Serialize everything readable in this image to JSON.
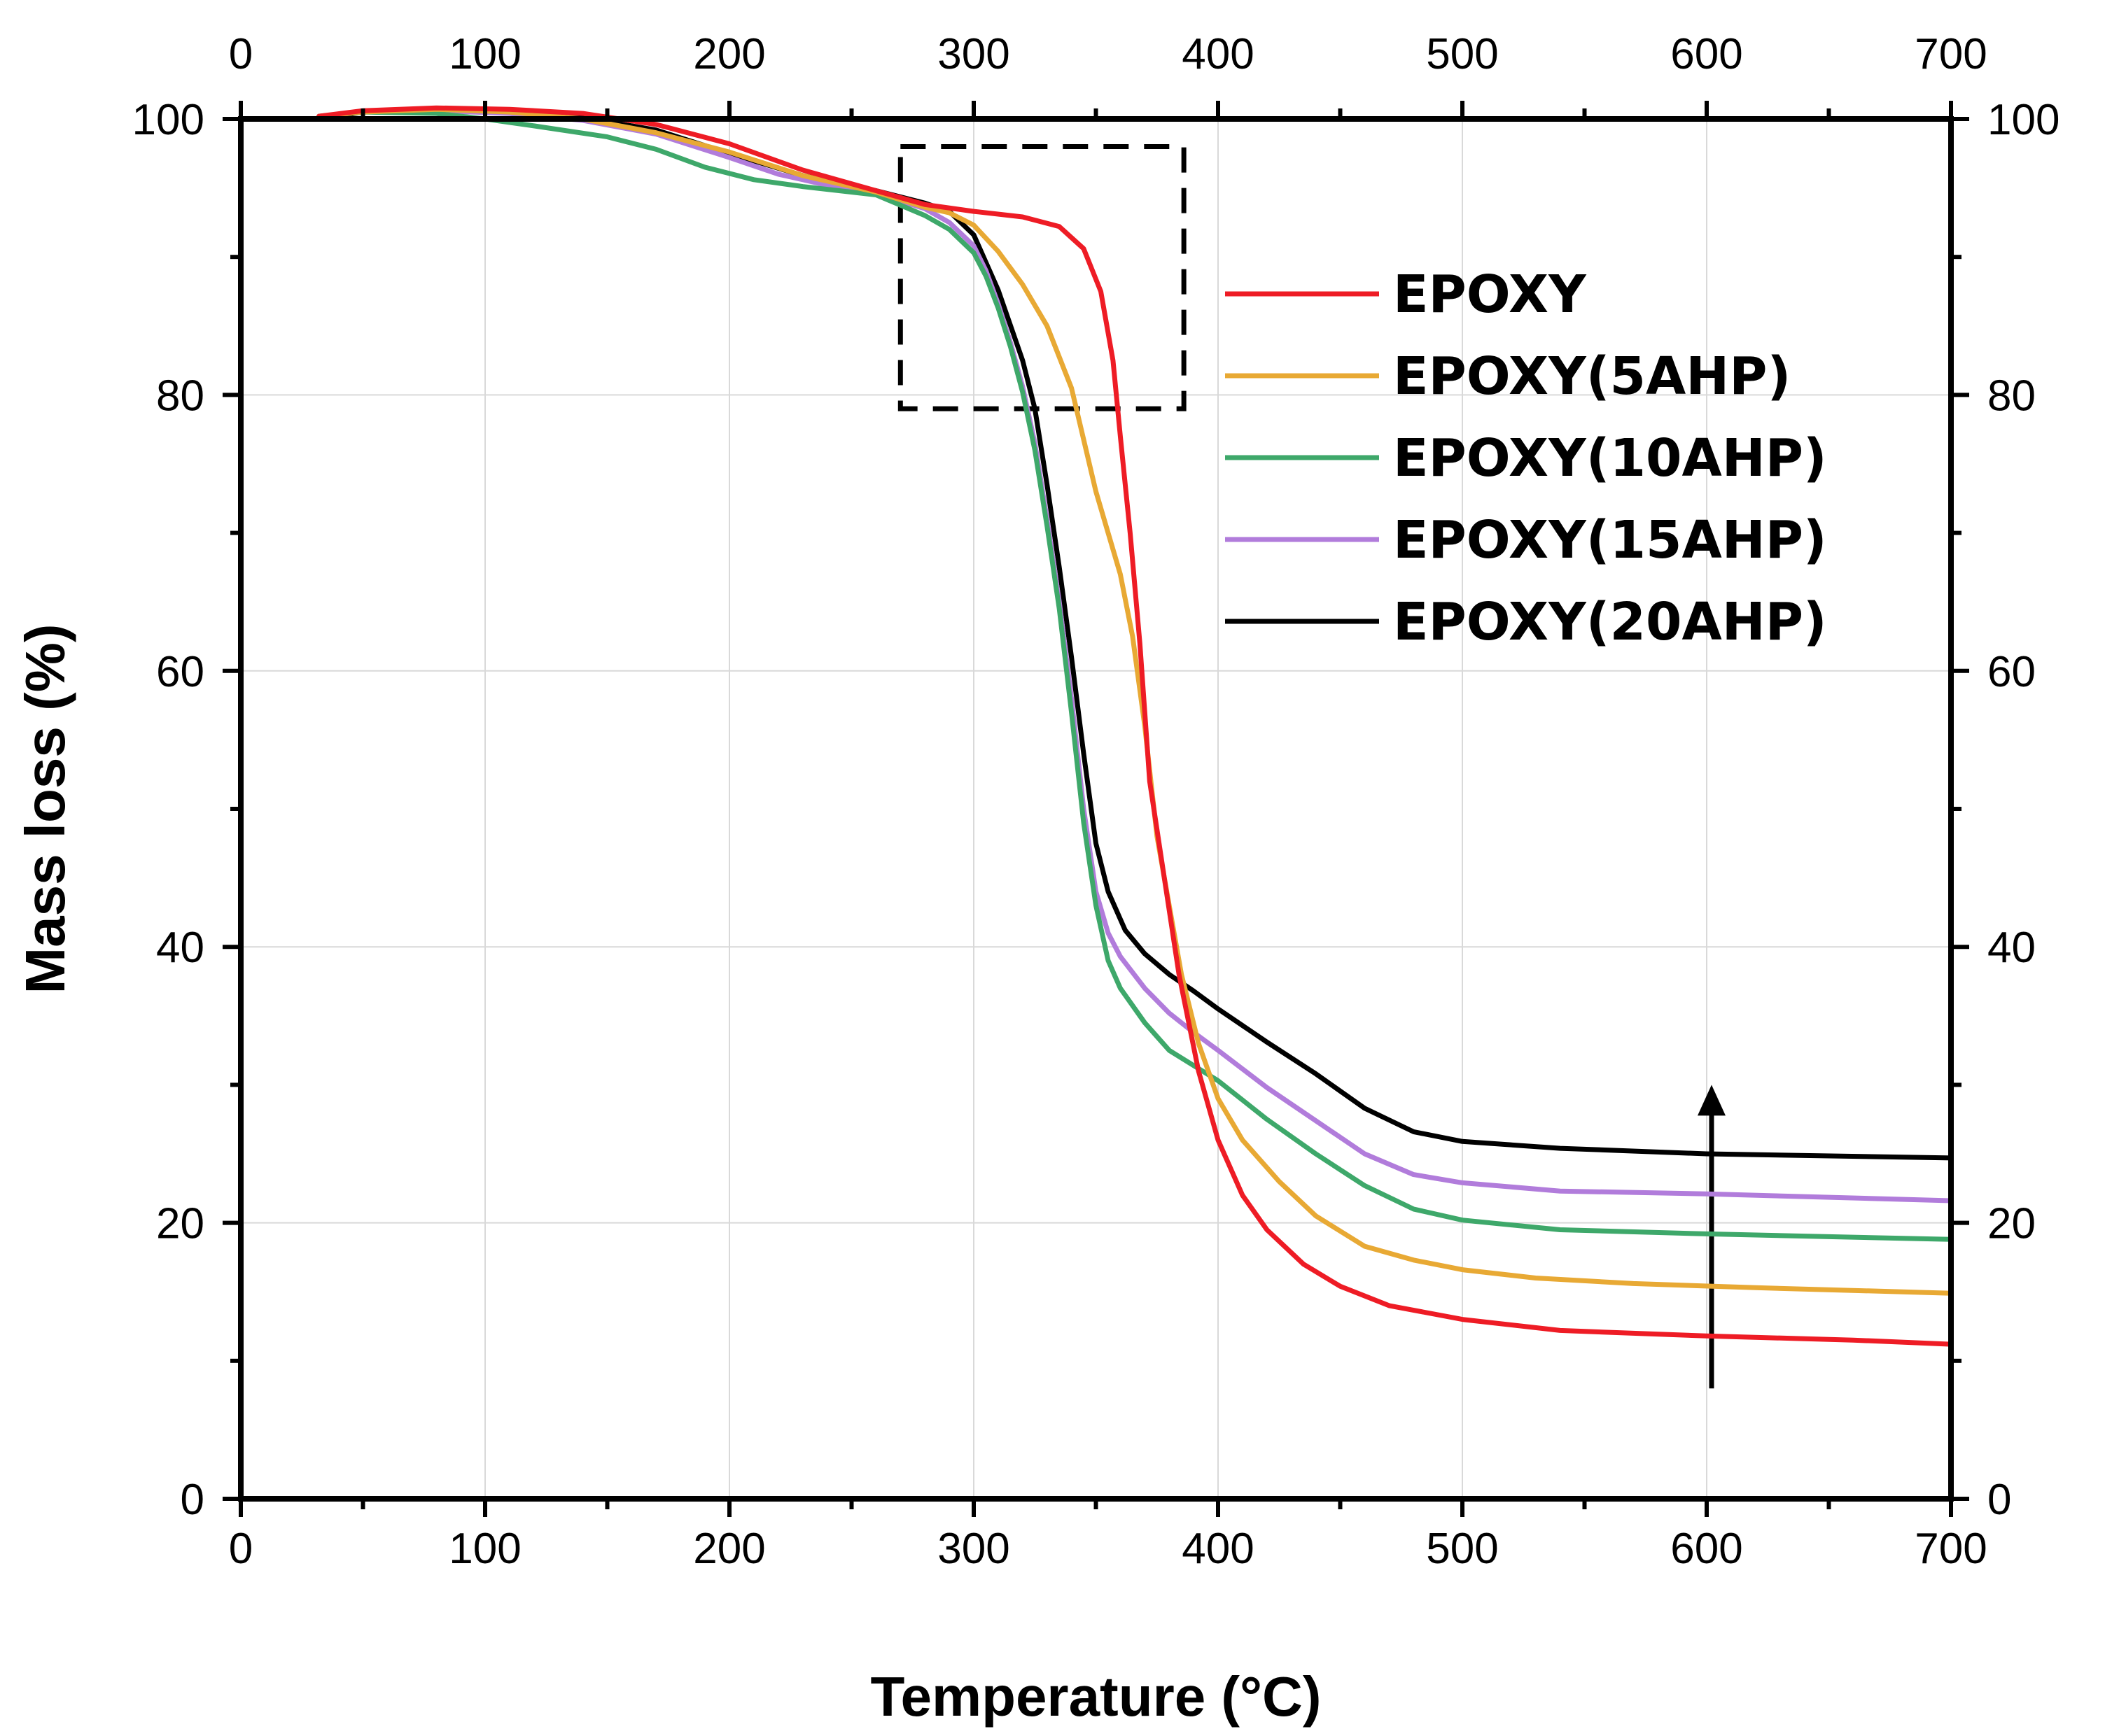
{
  "chart_data": {
    "type": "line",
    "title": "",
    "xlabel": "Temperature (°C)",
    "ylabel": "Mass loss (%)",
    "xlim": [
      0,
      700
    ],
    "ylim": [
      0,
      100
    ],
    "x_ticks": [
      0,
      100,
      200,
      300,
      400,
      500,
      600,
      700
    ],
    "y_ticks": [
      0,
      20,
      40,
      60,
      80,
      100
    ],
    "x_tick_labels": [
      "0",
      "100",
      "200",
      "300",
      "400",
      "500",
      "600",
      "700"
    ],
    "y_tick_labels": [
      "0",
      "20",
      "40",
      "60",
      "80",
      "100"
    ],
    "grid": true,
    "mirror_axes": true,
    "legend_position": "upper-right",
    "annotations": [
      {
        "type": "dashed-box",
        "x_range": [
          270,
          386
        ],
        "y_range": [
          79,
          98
        ],
        "meaning": "zoomed onset region"
      },
      {
        "type": "arrow",
        "x": 602,
        "y_from": 8,
        "y_to": 30,
        "meaning": "increasing AHP content raises char residue"
      }
    ],
    "series": [
      {
        "name": "EPOXY",
        "color": "#ee1c25",
        "points": [
          [
            32,
            100.2
          ],
          [
            50,
            100.6
          ],
          [
            80,
            100.8
          ],
          [
            110,
            100.7
          ],
          [
            140,
            100.4
          ],
          [
            170,
            99.6
          ],
          [
            200,
            98.2
          ],
          [
            230,
            96.3
          ],
          [
            260,
            94.8
          ],
          [
            280,
            93.8
          ],
          [
            300,
            93.3
          ],
          [
            320,
            92.9
          ],
          [
            335,
            92.2
          ],
          [
            345,
            90.6
          ],
          [
            352,
            87.5
          ],
          [
            357,
            82.5
          ],
          [
            360,
            77
          ],
          [
            364,
            70
          ],
          [
            368,
            62
          ],
          [
            372,
            52
          ],
          [
            378,
            45
          ],
          [
            384,
            38
          ],
          [
            392,
            31
          ],
          [
            400,
            26
          ],
          [
            410,
            22
          ],
          [
            420,
            19.5
          ],
          [
            435,
            17
          ],
          [
            450,
            15.4
          ],
          [
            470,
            14
          ],
          [
            500,
            13
          ],
          [
            540,
            12.2
          ],
          [
            600,
            11.8
          ],
          [
            660,
            11.5
          ],
          [
            700,
            11.2
          ]
        ]
      },
      {
        "name": "EPOXY(5AHP)",
        "color": "#e8a934",
        "points": [
          [
            32,
            100.2
          ],
          [
            50,
            100.5
          ],
          [
            80,
            100.7
          ],
          [
            110,
            100.5
          ],
          [
            140,
            100
          ],
          [
            170,
            99
          ],
          [
            200,
            97.6
          ],
          [
            230,
            95.9
          ],
          [
            260,
            94.7
          ],
          [
            280,
            93.6
          ],
          [
            290,
            93.2
          ],
          [
            300,
            92.3
          ],
          [
            310,
            90.4
          ],
          [
            320,
            88
          ],
          [
            330,
            85
          ],
          [
            340,
            80.5
          ],
          [
            350,
            73
          ],
          [
            360,
            67
          ],
          [
            365,
            62.5
          ],
          [
            370,
            56
          ],
          [
            375,
            48
          ],
          [
            380,
            43
          ],
          [
            385,
            38
          ],
          [
            392,
            33
          ],
          [
            400,
            29
          ],
          [
            410,
            26
          ],
          [
            425,
            23
          ],
          [
            440,
            20.5
          ],
          [
            460,
            18.3
          ],
          [
            480,
            17.3
          ],
          [
            500,
            16.6
          ],
          [
            530,
            16
          ],
          [
            570,
            15.6
          ],
          [
            620,
            15.3
          ],
          [
            700,
            14.9
          ]
        ]
      },
      {
        "name": "EPOXY(10AHP)",
        "color": "#3ea86a",
        "points": [
          [
            32,
            100.2
          ],
          [
            50,
            100.5
          ],
          [
            80,
            100.4
          ],
          [
            100,
            100
          ],
          [
            120,
            99.5
          ],
          [
            150,
            98.7
          ],
          [
            170,
            97.8
          ],
          [
            190,
            96.5
          ],
          [
            210,
            95.6
          ],
          [
            230,
            95.1
          ],
          [
            260,
            94.5
          ],
          [
            280,
            93
          ],
          [
            290,
            92
          ],
          [
            300,
            90.3
          ],
          [
            305,
            88.6
          ],
          [
            310,
            86.3
          ],
          [
            315,
            83.5
          ],
          [
            320,
            80.2
          ],
          [
            325,
            76
          ],
          [
            330,
            70.5
          ],
          [
            335,
            64.5
          ],
          [
            340,
            57
          ],
          [
            345,
            49
          ],
          [
            350,
            43
          ],
          [
            355,
            39
          ],
          [
            360,
            37
          ],
          [
            370,
            34.5
          ],
          [
            380,
            32.5
          ],
          [
            400,
            30.3
          ],
          [
            420,
            27.5
          ],
          [
            440,
            25
          ],
          [
            460,
            22.7
          ],
          [
            480,
            21
          ],
          [
            500,
            20.2
          ],
          [
            540,
            19.5
          ],
          [
            600,
            19.2
          ],
          [
            700,
            18.8
          ]
        ]
      },
      {
        "name": "EPOXY(15AHP)",
        "color": "#b17cdb",
        "points": [
          [
            32,
            100.2
          ],
          [
            50,
            100.5
          ],
          [
            80,
            100.6
          ],
          [
            110,
            100.4
          ],
          [
            140,
            99.9
          ],
          [
            170,
            98.9
          ],
          [
            200,
            97.2
          ],
          [
            220,
            96
          ],
          [
            240,
            95.2
          ],
          [
            260,
            94.6
          ],
          [
            280,
            93.5
          ],
          [
            290,
            92.5
          ],
          [
            300,
            90.8
          ],
          [
            305,
            89
          ],
          [
            310,
            86.6
          ],
          [
            315,
            83.8
          ],
          [
            320,
            80.6
          ],
          [
            325,
            76.5
          ],
          [
            330,
            71
          ],
          [
            335,
            65
          ],
          [
            340,
            58
          ],
          [
            345,
            50
          ],
          [
            350,
            44
          ],
          [
            355,
            41
          ],
          [
            360,
            39.3
          ],
          [
            370,
            37
          ],
          [
            380,
            35.2
          ],
          [
            390,
            33.8
          ],
          [
            400,
            32.5
          ],
          [
            420,
            29.8
          ],
          [
            440,
            27.4
          ],
          [
            460,
            25
          ],
          [
            480,
            23.5
          ],
          [
            500,
            22.9
          ],
          [
            540,
            22.3
          ],
          [
            600,
            22.1
          ],
          [
            700,
            21.6
          ]
        ]
      },
      {
        "name": "EPOXY(20AHP)",
        "color": "#000000",
        "points": [
          [
            32,
            100
          ],
          [
            50,
            100.5
          ],
          [
            80,
            100.6
          ],
          [
            110,
            100.5
          ],
          [
            140,
            100.1
          ],
          [
            170,
            99.2
          ],
          [
            200,
            97.5
          ],
          [
            230,
            95.9
          ],
          [
            260,
            94.8
          ],
          [
            280,
            93.9
          ],
          [
            290,
            93.3
          ],
          [
            300,
            91.6
          ],
          [
            310,
            87.6
          ],
          [
            320,
            82.5
          ],
          [
            325,
            79
          ],
          [
            330,
            73.5
          ],
          [
            335,
            67.5
          ],
          [
            340,
            61
          ],
          [
            345,
            54
          ],
          [
            350,
            47.5
          ],
          [
            355,
            44
          ],
          [
            362,
            41.2
          ],
          [
            370,
            39.5
          ],
          [
            380,
            38
          ],
          [
            390,
            36.8
          ],
          [
            400,
            35.5
          ],
          [
            420,
            33.1
          ],
          [
            440,
            30.8
          ],
          [
            460,
            28.3
          ],
          [
            480,
            26.6
          ],
          [
            500,
            25.9
          ],
          [
            540,
            25.4
          ],
          [
            600,
            25
          ],
          [
            700,
            24.7
          ]
        ]
      }
    ]
  }
}
